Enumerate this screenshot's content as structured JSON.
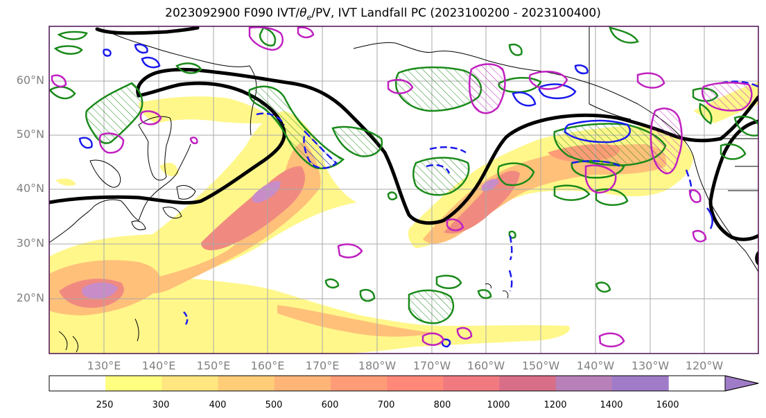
{
  "title": "2023092900 F090 IVT/θe/PV, IVT Landfall PC (2023100200 - 2023100400)",
  "title_parts": {
    "prefix": "2023092900 F090 IVT/",
    "theta": "θ",
    "theta_sub": "e",
    "suffix": "/PV, IVT Landfall PC (2023100200 - 2023100400)"
  },
  "map": {
    "lat_labels": [
      "60°N",
      "50°N",
      "40°N",
      "30°N",
      "20°N"
    ],
    "lon_labels": [
      "130°E",
      "140°E",
      "150°E",
      "160°E",
      "170°E",
      "180°W",
      "170°W",
      "160°W",
      "150°W",
      "140°W",
      "130°W",
      "120°W"
    ],
    "lat_range": [
      10,
      70
    ],
    "lon_range": [
      120,
      250
    ]
  },
  "colorbar": {
    "ticks": [
      "250",
      "300",
      "400",
      "500",
      "600",
      "700",
      "800",
      "1000",
      "1200",
      "1400",
      "1600"
    ],
    "colors": [
      "#ffff80",
      "#ffe680",
      "#ffcc78",
      "#ffb478",
      "#ff9c78",
      "#ff8878",
      "#f07a80",
      "#d86e88",
      "#b880b8",
      "#a07cc8"
    ],
    "extend": "max"
  },
  "colors": {
    "ivt_low": "#fff78a",
    "ivt_mid": "#ffc07a",
    "ivt_high": "#f08a80",
    "ivt_max": "#c88cc8",
    "contour_black": "#000000",
    "contour_green": "#1a8a1a",
    "contour_blue": "#1a1aee",
    "contour_magenta": "#c020c0",
    "grid": "#a9a9a9",
    "label_gray": "#808080"
  }
}
